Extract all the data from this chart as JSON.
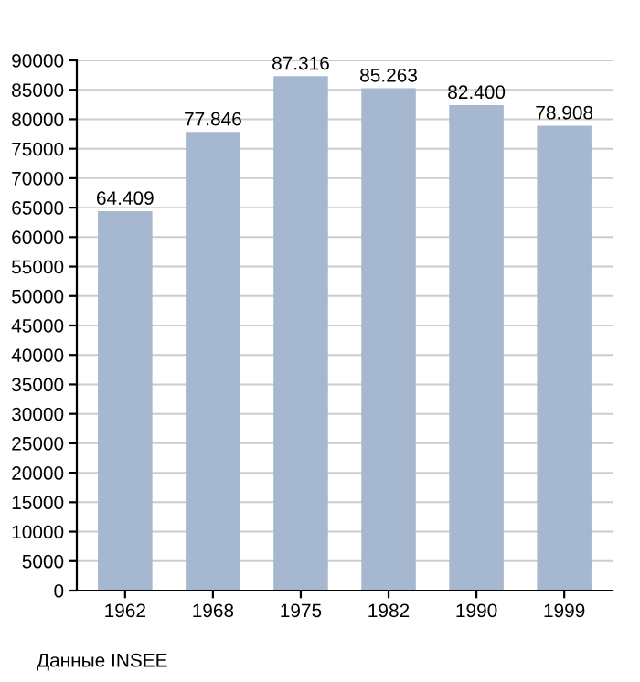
{
  "chart_data": {
    "type": "bar",
    "categories": [
      "1962",
      "1968",
      "1975",
      "1982",
      "1990",
      "1999"
    ],
    "values": [
      64409,
      77846,
      87316,
      85263,
      82400,
      78908
    ],
    "value_labels": [
      "64.409",
      "77.846",
      "87.316",
      "85.263",
      "82.400",
      "78.908"
    ],
    "color": "#a5b8d0",
    "ylim": [
      0,
      90000
    ],
    "yticks": [
      0,
      5000,
      10000,
      15000,
      20000,
      25000,
      30000,
      35000,
      40000,
      45000,
      50000,
      55000,
      60000,
      65000,
      70000,
      75000,
      80000,
      85000,
      90000
    ],
    "grid": "y",
    "annotations": [
      "Данные INSEE"
    ]
  }
}
